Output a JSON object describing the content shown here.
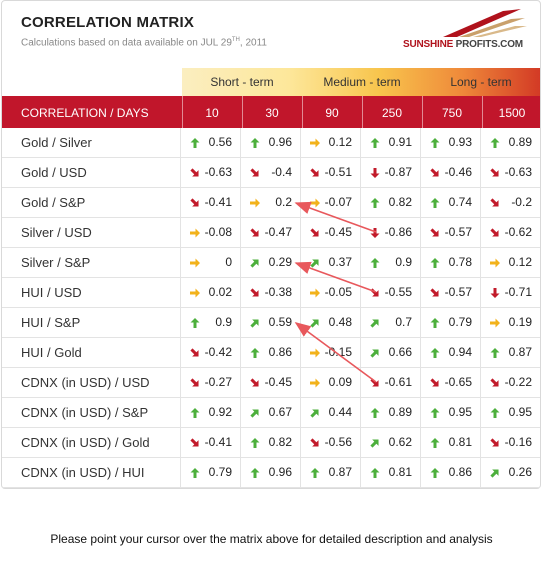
{
  "title": "CORRELATION MATRIX",
  "subtitle_prefix": "Calculations based on data available on  JUL 29",
  "subtitle_sup": "TH",
  "subtitle_suffix": ", 2011",
  "logo": {
    "part1": "SUNSHINE ",
    "part2": "PROFITS.COM"
  },
  "terms": [
    "Short - term",
    "Medium - term",
    "Long - term"
  ],
  "header_label": "CORRELATION / DAYS",
  "footer": "Please point your cursor over the matrix above for detailed description and analysis",
  "colors": {
    "header_red": "#c1162b",
    "up": "#4caf3c",
    "down": "#c21b2b",
    "flat": "#f2b21b",
    "annotation": "#e8585c"
  },
  "chart_data": {
    "type": "table",
    "columns": [
      "10",
      "30",
      "90",
      "250",
      "750",
      "1500"
    ],
    "rows": [
      {
        "label": "Gold / Silver",
        "values": [
          "0.56",
          "0.96",
          "0.12",
          "0.91",
          "0.93",
          "0.89"
        ],
        "icons": [
          "up",
          "up",
          "flat",
          "up",
          "up",
          "up"
        ]
      },
      {
        "label": "Gold / USD",
        "values": [
          "-0.63",
          "-0.4",
          "-0.51",
          "-0.87",
          "-0.46",
          "-0.63"
        ],
        "icons": [
          "downright",
          "downright",
          "downright",
          "down",
          "downright",
          "downright"
        ]
      },
      {
        "label": "Gold / S&P",
        "values": [
          "-0.41",
          "0.2",
          "-0.07",
          "0.82",
          "0.74",
          "-0.2"
        ],
        "icons": [
          "downright",
          "flat",
          "flat",
          "up",
          "up",
          "downright"
        ]
      },
      {
        "label": "Silver / USD",
        "values": [
          "-0.08",
          "-0.47",
          "-0.45",
          "-0.86",
          "-0.57",
          "-0.62"
        ],
        "icons": [
          "flat",
          "downright",
          "downright",
          "down",
          "downright",
          "downright"
        ]
      },
      {
        "label": "Silver / S&P",
        "values": [
          "0",
          "0.29",
          "0.37",
          "0.9",
          "0.78",
          "0.12"
        ],
        "icons": [
          "flat",
          "upright",
          "upright",
          "up",
          "up",
          "flat"
        ]
      },
      {
        "label": "HUI / USD",
        "values": [
          "0.02",
          "-0.38",
          "-0.05",
          "-0.55",
          "-0.57",
          "-0.71"
        ],
        "icons": [
          "flat",
          "downright",
          "flat",
          "downright",
          "downright",
          "down"
        ]
      },
      {
        "label": "HUI / S&P",
        "values": [
          "0.9",
          "0.59",
          "0.48",
          "0.7",
          "0.79",
          "0.19"
        ],
        "icons": [
          "up",
          "upright",
          "upright",
          "upright",
          "up",
          "flat"
        ]
      },
      {
        "label": "HUI / Gold",
        "values": [
          "-0.42",
          "0.86",
          "-0.15",
          "0.66",
          "0.94",
          "0.87"
        ],
        "icons": [
          "downright",
          "up",
          "flat",
          "upright",
          "up",
          "up"
        ]
      },
      {
        "label": "CDNX (in USD) / USD",
        "values": [
          "-0.27",
          "-0.45",
          "0.09",
          "-0.61",
          "-0.65",
          "-0.22"
        ],
        "icons": [
          "downright",
          "downright",
          "flat",
          "downright",
          "downright",
          "downright"
        ]
      },
      {
        "label": "CDNX (in USD) / S&P",
        "values": [
          "0.92",
          "0.67",
          "0.44",
          "0.89",
          "0.95",
          "0.95"
        ],
        "icons": [
          "up",
          "upright",
          "upright",
          "up",
          "up",
          "up"
        ]
      },
      {
        "label": "CDNX (in USD) / Gold",
        "values": [
          "-0.41",
          "0.82",
          "-0.56",
          "0.62",
          "0.81",
          "-0.16"
        ],
        "icons": [
          "downright",
          "up",
          "downright",
          "upright",
          "up",
          "downright"
        ]
      },
      {
        "label": "CDNX (in USD) / HUI",
        "values": [
          "0.79",
          "0.96",
          "0.87",
          "0.81",
          "0.86",
          "0.26"
        ],
        "icons": [
          "up",
          "up",
          "up",
          "up",
          "up",
          "upright"
        ]
      }
    ],
    "annotations": [
      {
        "from": {
          "row": "Silver / USD",
          "column": "250"
        },
        "to": {
          "row": "Gold / S&P",
          "column": "30"
        }
      },
      {
        "from": {
          "row": "HUI / USD",
          "column": "250"
        },
        "to": {
          "row": "Silver / S&P",
          "column": "30"
        }
      },
      {
        "from": {
          "row": "CDNX (in USD) / USD",
          "column": "250"
        },
        "to": {
          "row": "HUI / S&P",
          "column": "30"
        }
      }
    ]
  }
}
